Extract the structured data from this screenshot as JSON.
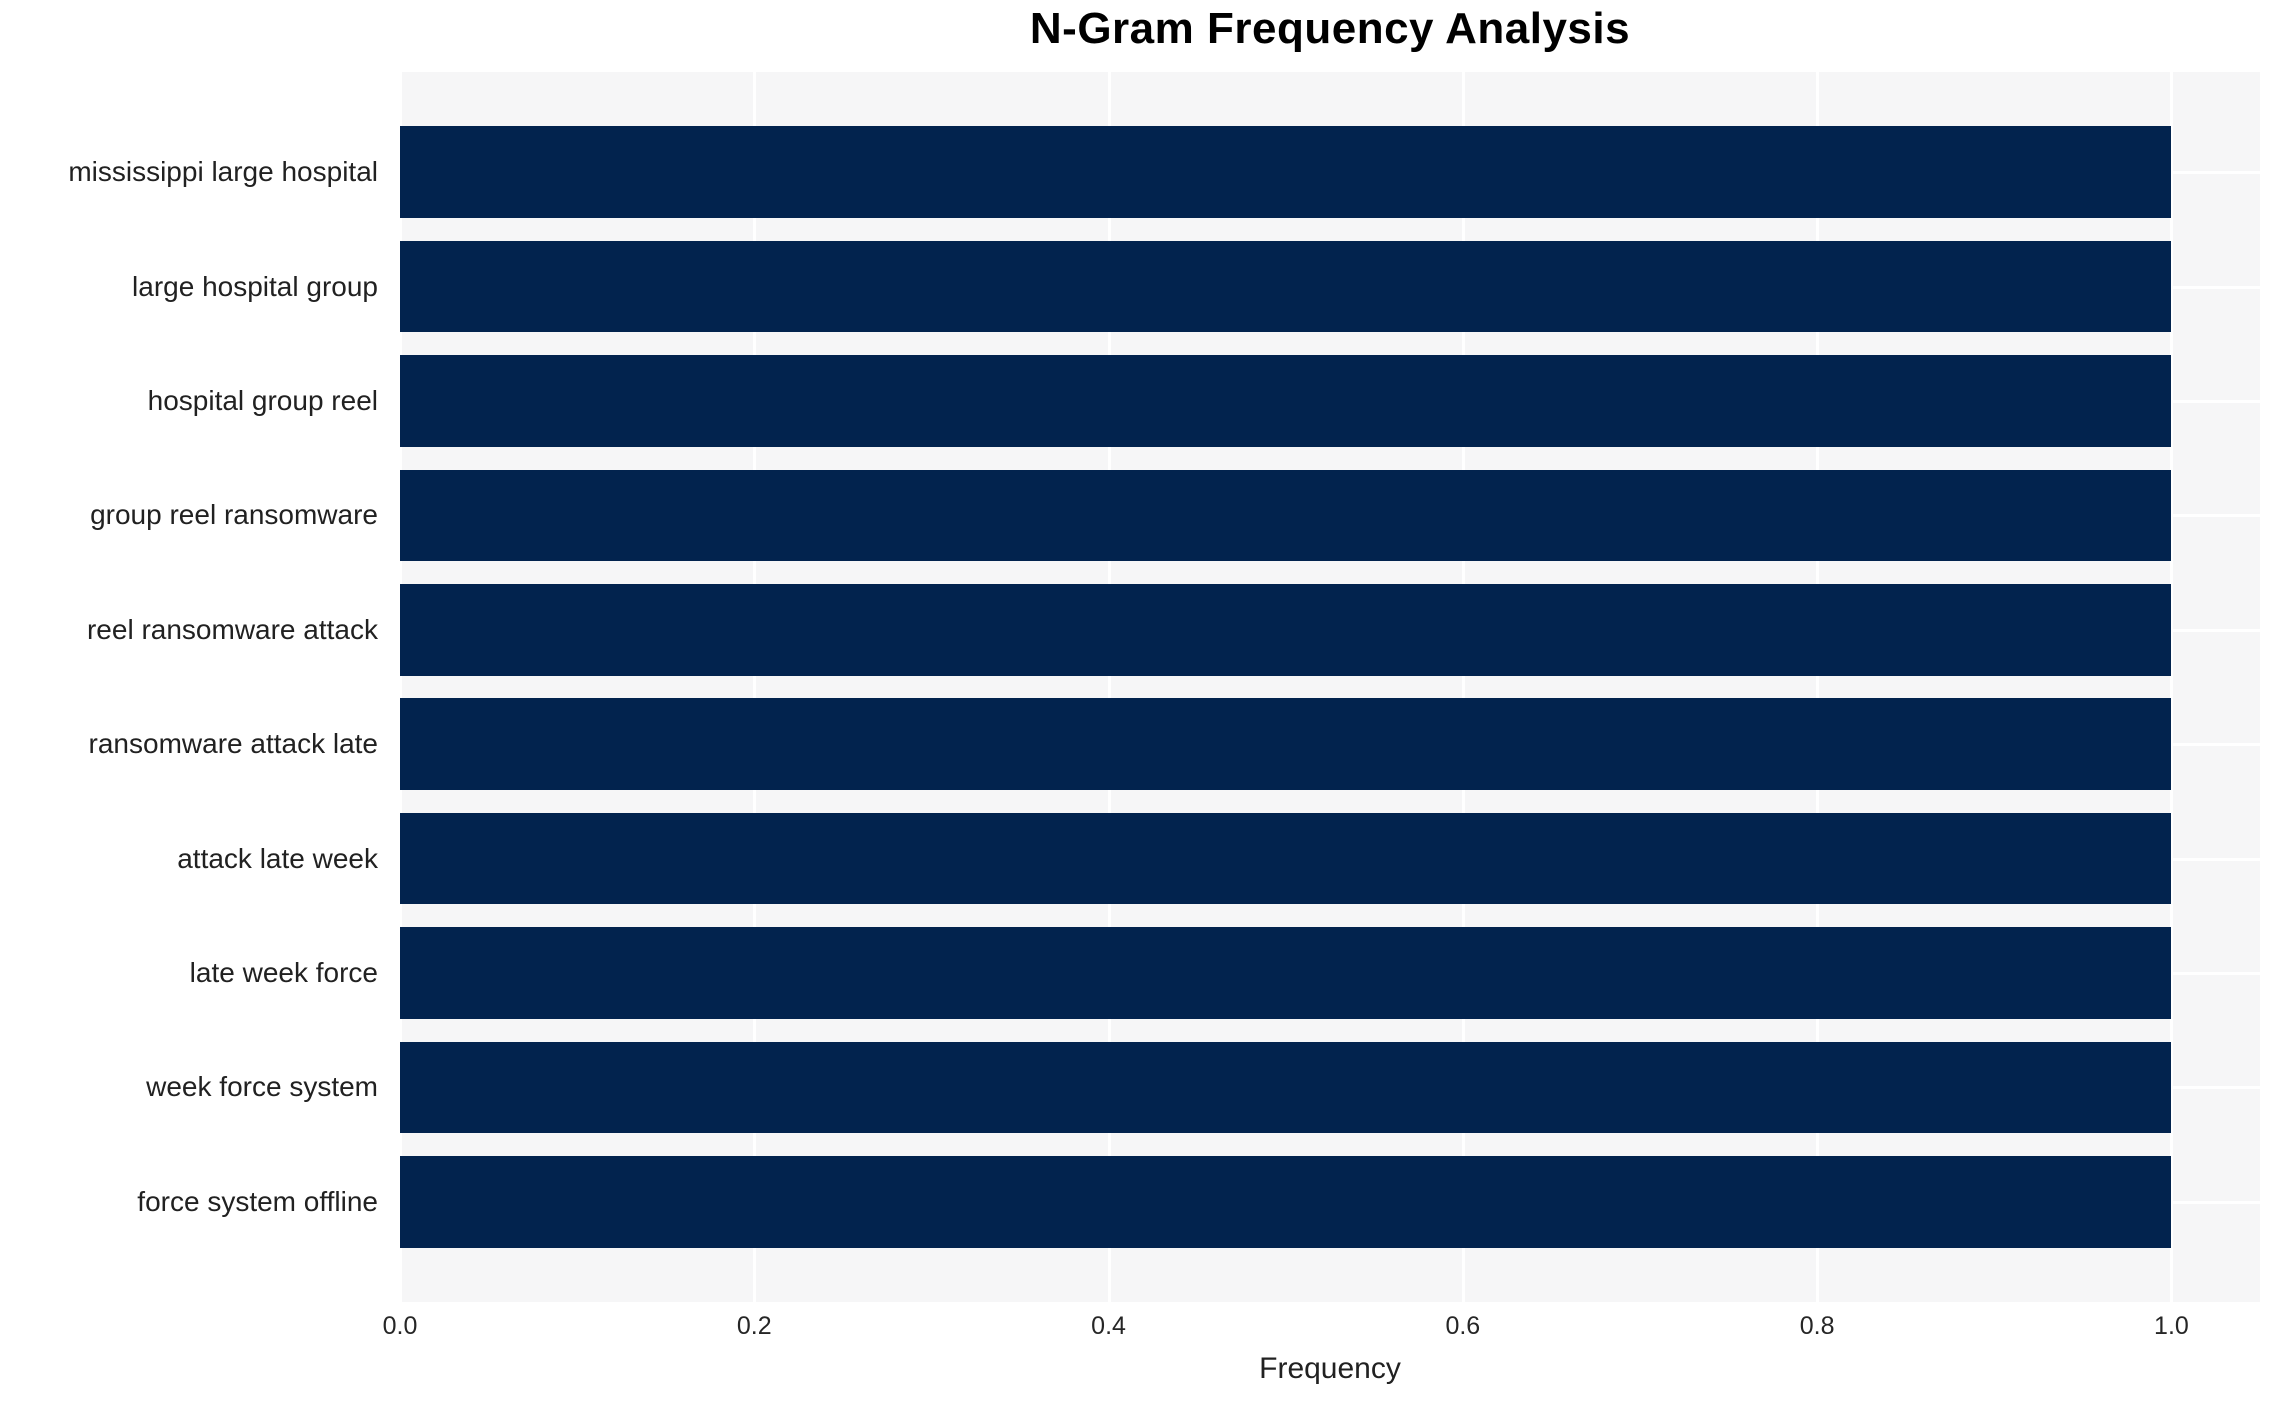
{
  "title": "N-Gram Frequency Analysis",
  "colors": {
    "figure_bg": "#ffffff",
    "plot_bg": "#f6f6f7",
    "grid": "#ffffff",
    "bar": "#02234e",
    "title_text": "#000000",
    "label_text": "#212121",
    "tick_text": "#262626"
  },
  "chart_data": {
    "type": "bar",
    "orientation": "horizontal",
    "title": "N-Gram Frequency Analysis",
    "xlabel": "Frequency",
    "ylabel": "",
    "categories": [
      "mississippi large hospital",
      "large hospital group",
      "hospital group reel",
      "group reel ransomware",
      "reel ransomware attack",
      "ransomware attack late",
      "attack late week",
      "late week force",
      "week force system",
      "force system offline"
    ],
    "values": [
      1.0,
      1.0,
      1.0,
      1.0,
      1.0,
      1.0,
      1.0,
      1.0,
      1.0,
      1.0
    ],
    "xlim": [
      0.0,
      1.05
    ],
    "xticks": [
      0.0,
      0.2,
      0.4,
      0.6,
      0.8,
      1.0
    ],
    "xtick_labels": [
      "0.0",
      "0.2",
      "0.4",
      "0.6",
      "0.8",
      "1.0"
    ],
    "grid": true,
    "legend": false,
    "bar_width_fraction": 0.8
  }
}
